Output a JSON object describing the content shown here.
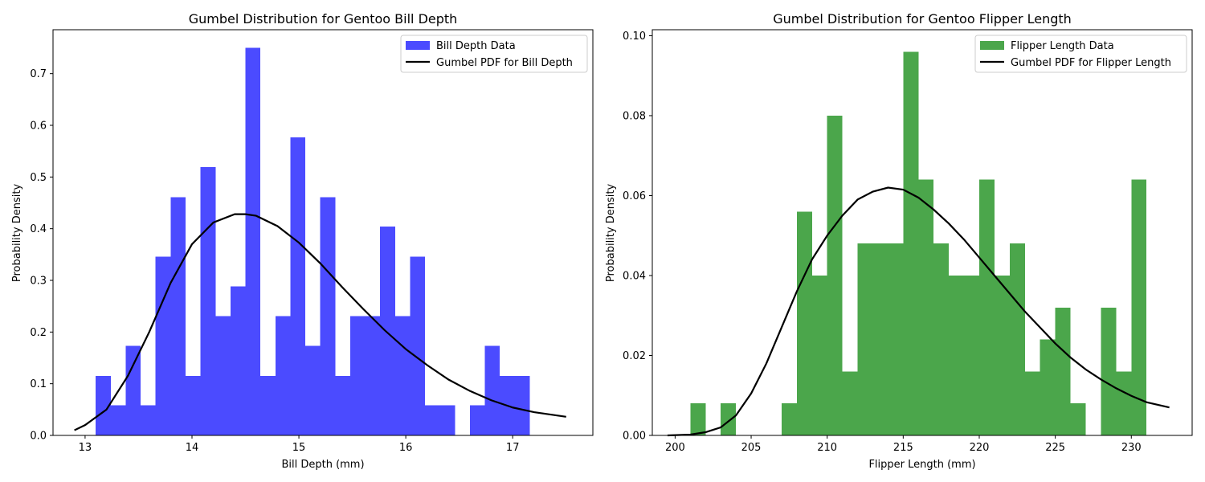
{
  "colors": {
    "left_bars": "#4b4bff",
    "right_bars": "#4ba64b",
    "pdf_line": "#000000"
  },
  "chart_data": [
    {
      "type": "bar",
      "title": "Gumbel Distribution for Gentoo Bill Depth",
      "xlabel": "Bill Depth (mm)",
      "ylabel": "Probability Density",
      "xlim": [
        12.7,
        17.75
      ],
      "ylim": [
        0,
        0.785
      ],
      "xticks": [
        "13",
        "14",
        "15",
        "16",
        "17"
      ],
      "yticks": [
        "0.0",
        "0.1",
        "0.2",
        "0.3",
        "0.4",
        "0.5",
        "0.6",
        "0.7"
      ],
      "legend_position": "upper right",
      "histogram": {
        "name": "Bill Depth Data",
        "bin_start": 13.1,
        "bin_width": 0.14,
        "values": [
          0.115,
          0.058,
          0.173,
          0.058,
          0.346,
          0.461,
          0.115,
          0.519,
          0.231,
          0.288,
          0.75,
          0.115,
          0.231,
          0.577,
          0.173,
          0.461,
          0.115,
          0.231,
          0.231,
          0.404,
          0.231,
          0.346,
          0.058,
          0.058,
          0.0,
          0.058,
          0.173,
          0.115,
          0.115
        ]
      },
      "pdf": {
        "name": "Gumbel PDF for Bill Depth",
        "x": [
          12.9,
          13.0,
          13.2,
          13.4,
          13.6,
          13.8,
          14.0,
          14.2,
          14.4,
          14.5,
          14.6,
          14.8,
          15.0,
          15.2,
          15.4,
          15.6,
          15.8,
          16.0,
          16.2,
          16.4,
          16.6,
          16.8,
          17.0,
          17.2,
          17.5
        ],
        "y": [
          0.01,
          0.02,
          0.05,
          0.115,
          0.2,
          0.295,
          0.37,
          0.412,
          0.428,
          0.428,
          0.425,
          0.405,
          0.373,
          0.333,
          0.288,
          0.245,
          0.204,
          0.167,
          0.136,
          0.108,
          0.086,
          0.068,
          0.054,
          0.045,
          0.036
        ]
      }
    },
    {
      "type": "bar",
      "title": "Gumbel Distribution for Gentoo Flipper Length",
      "xlabel": "Flipper Length (mm)",
      "ylabel": "Probability Density",
      "xlim": [
        198.5,
        234.0
      ],
      "ylim": [
        0,
        0.1015
      ],
      "xticks": [
        "200",
        "205",
        "210",
        "215",
        "220",
        "225",
        "230"
      ],
      "yticks": [
        "0.00",
        "0.02",
        "0.04",
        "0.06",
        "0.08",
        "0.10"
      ],
      "legend_position": "upper right",
      "histogram": {
        "name": "Flipper Length Data",
        "bin_start": 201,
        "bin_width": 1.0,
        "values": [
          0.008,
          0.0,
          0.008,
          0.0,
          0.0,
          0.0,
          0.008,
          0.056,
          0.04,
          0.08,
          0.016,
          0.048,
          0.048,
          0.048,
          0.096,
          0.064,
          0.048,
          0.04,
          0.04,
          0.064,
          0.04,
          0.048,
          0.016,
          0.024,
          0.032,
          0.008,
          0.0,
          0.032,
          0.016,
          0.064
        ]
      },
      "pdf": {
        "name": "Gumbel PDF for Flipper Length",
        "x": [
          199.5,
          201,
          202,
          203,
          204,
          205,
          206,
          207,
          208,
          209,
          210,
          211,
          212,
          213,
          214,
          215,
          216,
          217,
          218,
          219,
          220,
          221,
          222,
          223,
          224,
          225,
          226,
          227,
          228,
          229,
          230,
          231,
          232.5
        ],
        "y": [
          0.0,
          0.0002,
          0.0008,
          0.002,
          0.005,
          0.0105,
          0.018,
          0.027,
          0.036,
          0.044,
          0.05,
          0.055,
          0.059,
          0.061,
          0.062,
          0.0615,
          0.0595,
          0.0565,
          0.053,
          0.049,
          0.0445,
          0.04,
          0.0355,
          0.031,
          0.027,
          0.023,
          0.0195,
          0.0165,
          0.014,
          0.0118,
          0.0099,
          0.0083,
          0.007
        ]
      }
    }
  ]
}
